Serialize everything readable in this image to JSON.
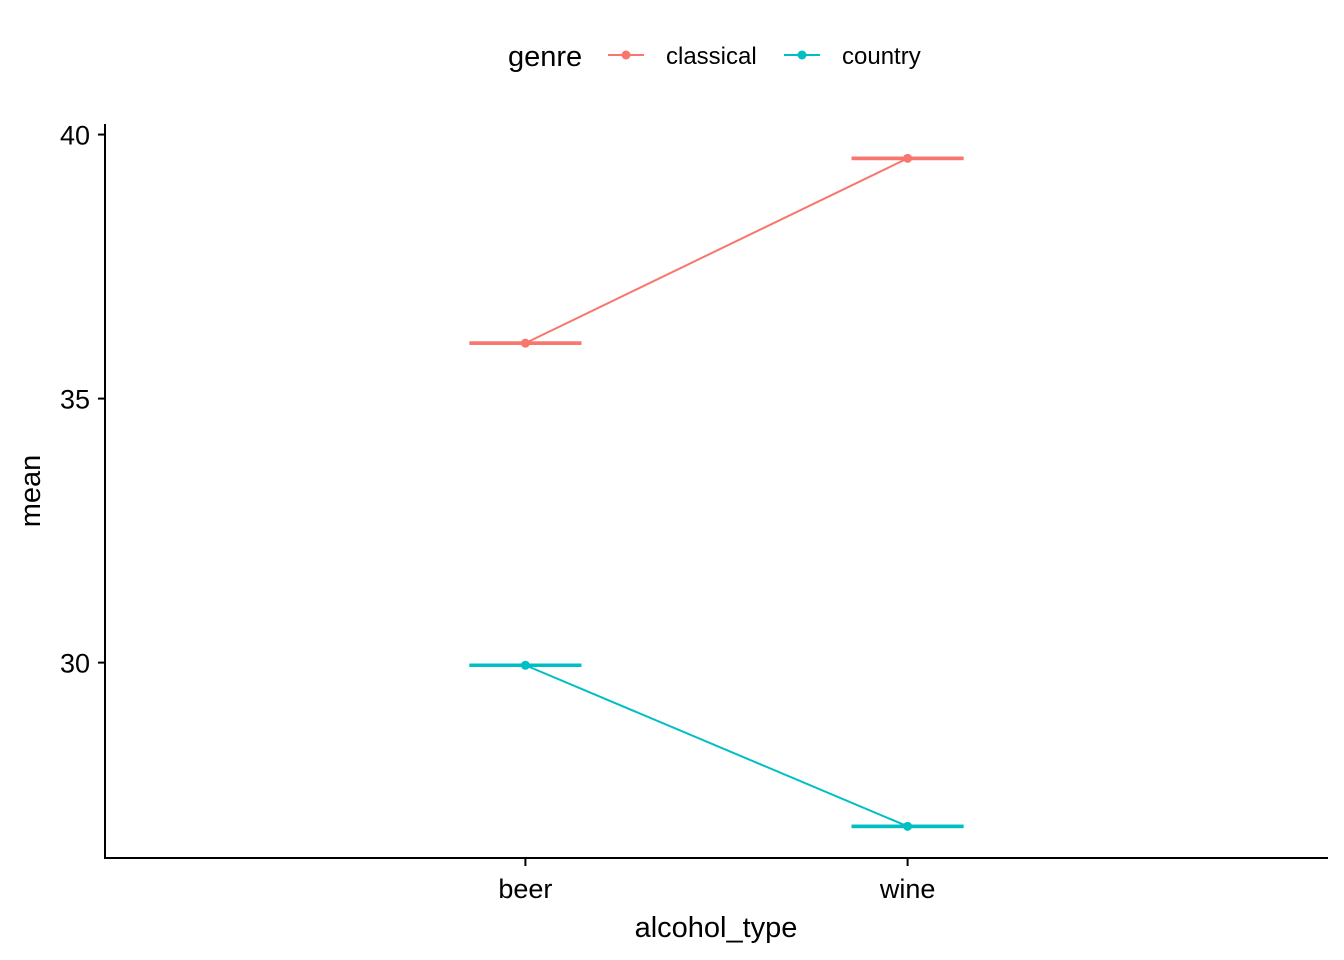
{
  "chart_data": {
    "type": "line",
    "categories": [
      "beer",
      "wine"
    ],
    "xlabel": "alcohol_type",
    "ylabel": "mean",
    "ylim": [
      26.3,
      40.2
    ],
    "yticks": [
      30,
      35,
      40
    ],
    "legend": {
      "title": "genre",
      "position": "top"
    },
    "series": [
      {
        "name": "classical",
        "color": "#F8766D",
        "values": [
          36.05,
          39.55
        ],
        "ci_low": [
          36.05,
          39.55
        ],
        "ci_high": [
          36.05,
          39.55
        ]
      },
      {
        "name": "country",
        "color": "#00BFC4",
        "values": [
          29.95,
          26.9
        ],
        "ci_low": [
          29.95,
          26.9
        ],
        "ci_high": [
          29.95,
          26.9
        ]
      }
    ]
  }
}
